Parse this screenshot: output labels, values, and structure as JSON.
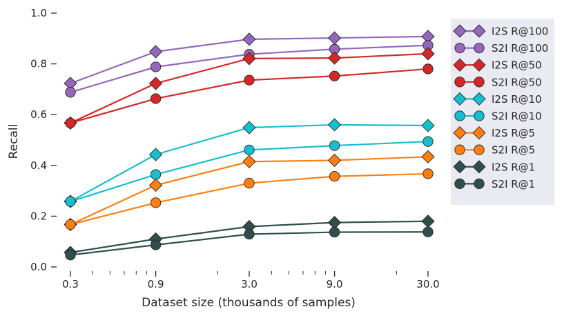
{
  "chart_data": {
    "type": "line",
    "title": "",
    "xlabel": "Dataset size (thousands of samples)",
    "ylabel": "Recall",
    "x_scale": "log",
    "x": [
      0.3,
      0.9,
      3.0,
      9.0,
      30.0
    ],
    "x_tick_labels": [
      "0.3",
      "0.9",
      "3.0",
      "9.0",
      "30.0"
    ],
    "ylim": [
      0.0,
      1.0
    ],
    "y_ticks": [
      0.0,
      0.2,
      0.4,
      0.6,
      0.8,
      1.0
    ],
    "y_tick_labels": [
      "0.0",
      "0.2",
      "0.4",
      "0.6",
      "0.8",
      "1.0"
    ],
    "grid": false,
    "legend_position": "right",
    "series": [
      {
        "name": "I2S R@100",
        "color": "#9467bd",
        "marker": "diamond",
        "values": [
          0.723,
          0.848,
          0.897,
          0.902,
          0.908
        ]
      },
      {
        "name": "S2I R@100",
        "color": "#9467bd",
        "marker": "circle",
        "values": [
          0.688,
          0.788,
          0.838,
          0.858,
          0.873
        ]
      },
      {
        "name": "I2S R@50",
        "color": "#d62728",
        "marker": "diamond",
        "values": [
          0.567,
          0.723,
          0.821,
          0.823,
          0.84
        ]
      },
      {
        "name": "S2I R@50",
        "color": "#d62728",
        "marker": "circle",
        "values": [
          0.567,
          0.663,
          0.736,
          0.752,
          0.78
        ]
      },
      {
        "name": "I2S R@10",
        "color": "#17becf",
        "marker": "diamond",
        "values": [
          0.258,
          0.443,
          0.549,
          0.56,
          0.557
        ]
      },
      {
        "name": "S2I R@10",
        "color": "#17becf",
        "marker": "circle",
        "values": [
          0.258,
          0.364,
          0.461,
          0.478,
          0.494
        ]
      },
      {
        "name": "I2S R@5",
        "color": "#ff7f0e",
        "marker": "diamond",
        "values": [
          0.167,
          0.322,
          0.415,
          0.42,
          0.434
        ]
      },
      {
        "name": "S2I R@5",
        "color": "#ff7f0e",
        "marker": "circle",
        "values": [
          0.167,
          0.253,
          0.33,
          0.357,
          0.367
        ]
      },
      {
        "name": "I2S R@1",
        "color": "#2f4f4f",
        "marker": "diamond",
        "values": [
          0.057,
          0.11,
          0.159,
          0.175,
          0.18
        ]
      },
      {
        "name": "S2I R@1",
        "color": "#2f4f4f",
        "marker": "circle",
        "values": [
          0.047,
          0.087,
          0.129,
          0.137,
          0.138
        ]
      }
    ]
  }
}
